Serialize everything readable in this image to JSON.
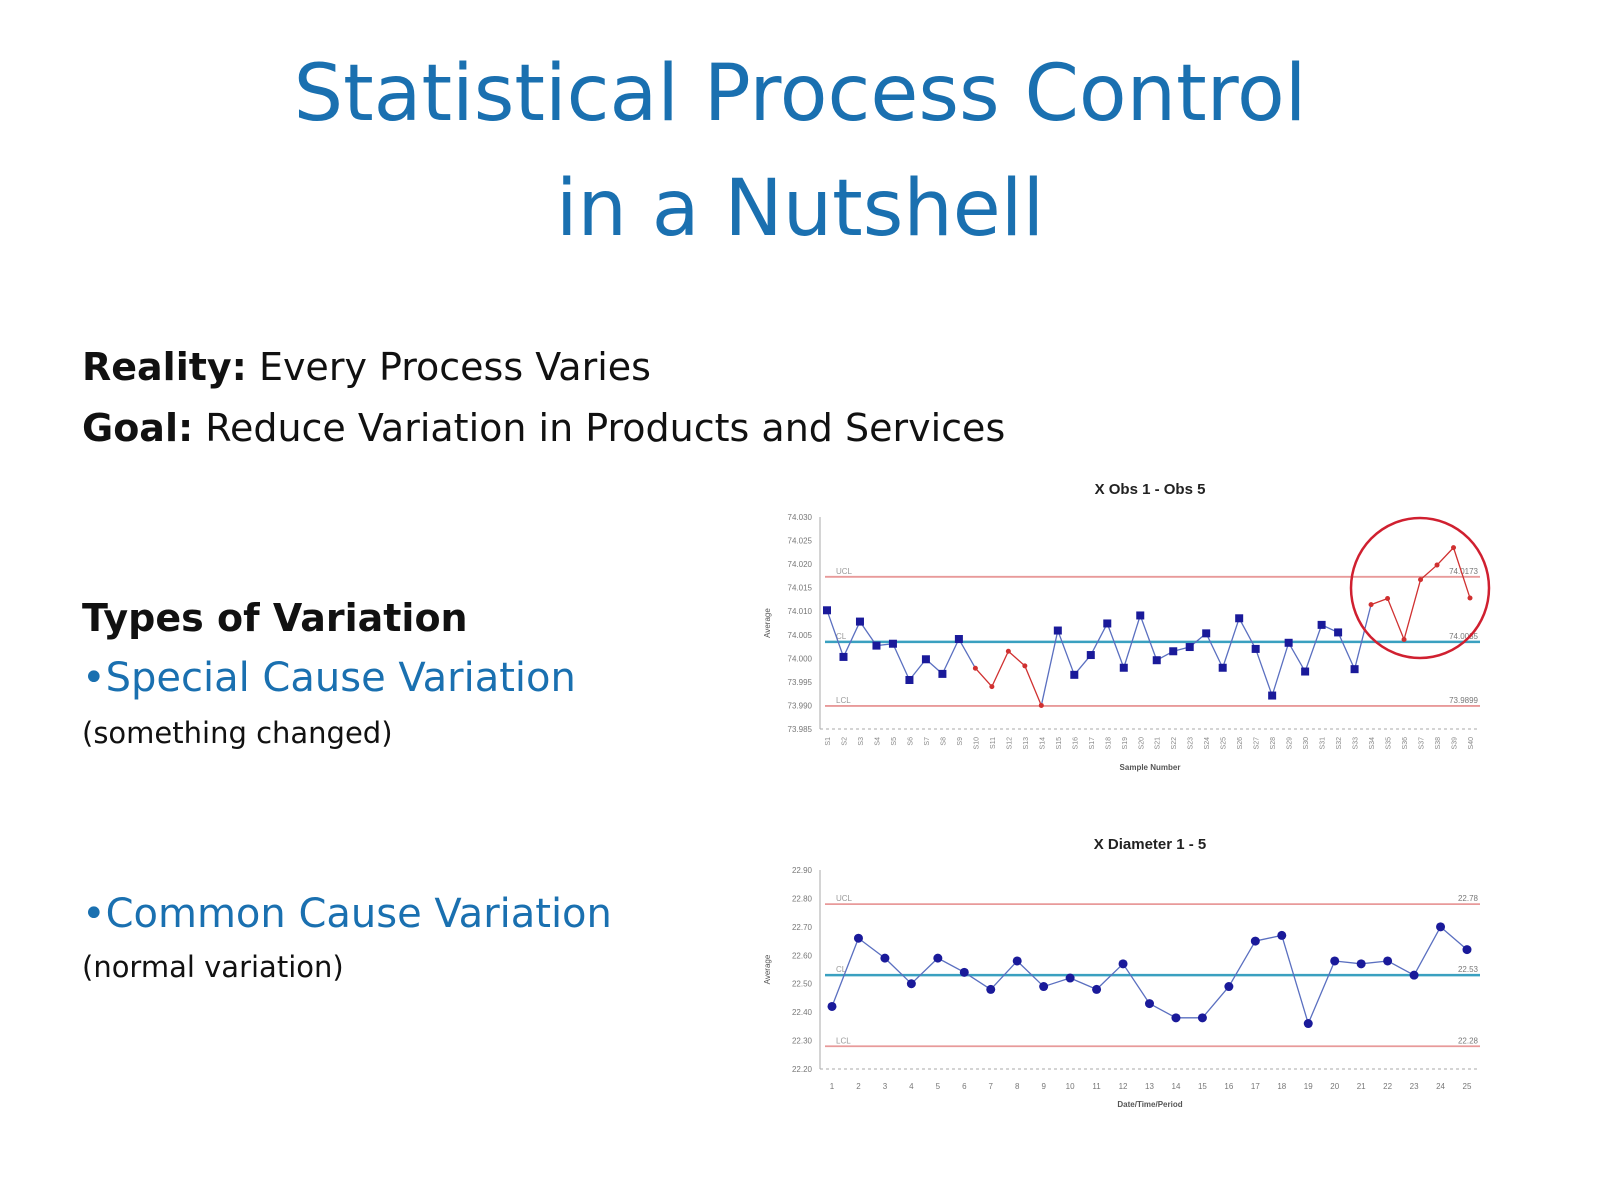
{
  "slide": {
    "title_line1": "Statistical Process Control",
    "title_line2": "in a Nutshell",
    "reality_label": "Reality:",
    "reality_text": " Every Process Varies",
    "goal_label": "Goal:",
    "goal_text": " Reduce Variation in Products and Services",
    "types_heading": "Types of Variation",
    "special_bullet": "•Special Cause Variation",
    "special_note": "(something changed)",
    "common_bullet": "•Common Cause Variation",
    "common_note": "(normal variation)",
    "colors": {
      "title": "#1a70b0",
      "control_limits": "#e89a9a",
      "center_line": "#3aa0c0",
      "in_control": "#1a1a9a",
      "out_of_control": "#d03030",
      "highlight_circle": "#d02030"
    }
  },
  "chart_data": [
    {
      "type": "line",
      "title": "X Obs 1 - Obs 5",
      "xlabel": "Sample Number",
      "ylabel": "Average",
      "ylim": [
        73.985,
        74.03
      ],
      "yticks": [
        "73.985",
        "73.990",
        "73.995",
        "74.000",
        "74.005",
        "74.010",
        "74.015",
        "74.020",
        "74.025",
        "74.030"
      ],
      "categories": [
        "S1",
        "S2",
        "S3",
        "S4",
        "S5",
        "S6",
        "S7",
        "S8",
        "S9",
        "S10",
        "S11",
        "S12",
        "S13",
        "S14",
        "S15",
        "S16",
        "S17",
        "S18",
        "S19",
        "S20",
        "S21",
        "S22",
        "S23",
        "S24",
        "S25",
        "S26",
        "S27",
        "S28",
        "S29",
        "S30",
        "S31",
        "S32",
        "S33",
        "S34",
        "S35",
        "S36",
        "S37",
        "S38",
        "S39",
        "S40"
      ],
      "values": [
        74.0102,
        74.0003,
        74.0078,
        74.0027,
        74.0031,
        73.9954,
        73.9998,
        73.9967,
        74.0041,
        73.9979,
        73.994,
        74.0015,
        73.9984,
        73.99,
        74.0059,
        73.9965,
        74.0007,
        74.0074,
        73.998,
        74.0091,
        73.9996,
        74.0015,
        74.0024,
        74.0053,
        73.998,
        74.0085,
        74.002,
        73.9921,
        74.0033,
        73.9972,
        74.0071,
        74.0055,
        73.9977,
        74.0114,
        74.0127,
        74.004,
        74.0167,
        74.0198,
        74.0235,
        74.0128
      ],
      "out_of_control_points": [
        10,
        11,
        12,
        13,
        14,
        34,
        35,
        36,
        37,
        38,
        39,
        40
      ],
      "control_limits": {
        "UCL": 74.0173,
        "CL": 74.0035,
        "LCL": 73.9899
      },
      "limit_labels": {
        "UCL": "UCL",
        "CL": "CL",
        "LCL": "LCL",
        "UCL_value": "74.0173",
        "CL_value": "74.0035",
        "LCL_value": "73.9899"
      },
      "annotation": "red circle around samples 34-40",
      "grid": false
    },
    {
      "type": "line",
      "title": "X Diameter 1 - 5",
      "xlabel": "Date/Time/Period",
      "ylabel": "Average",
      "ylim": [
        22.2,
        22.9
      ],
      "yticks": [
        "22.20",
        "22.30",
        "22.40",
        "22.50",
        "22.60",
        "22.70",
        "22.80",
        "22.90"
      ],
      "categories": [
        "1",
        "2",
        "3",
        "4",
        "5",
        "6",
        "7",
        "8",
        "9",
        "10",
        "11",
        "12",
        "13",
        "14",
        "15",
        "16",
        "17",
        "18",
        "19",
        "20",
        "21",
        "22",
        "23",
        "24",
        "25"
      ],
      "values": [
        22.42,
        22.66,
        22.59,
        22.5,
        22.59,
        22.54,
        22.48,
        22.58,
        22.49,
        22.52,
        22.48,
        22.57,
        22.43,
        22.38,
        22.38,
        22.49,
        22.65,
        22.67,
        22.36,
        22.58,
        22.57,
        22.58,
        22.53,
        22.7,
        22.62
      ],
      "control_limits": {
        "UCL": 22.78,
        "CL": 22.53,
        "LCL": 22.28
      },
      "limit_labels": {
        "UCL": "UCL",
        "CL": "CL",
        "LCL": "LCL",
        "UCL_value": "22.78",
        "CL_value": "22.53",
        "LCL_value": "22.28"
      },
      "grid": false
    }
  ]
}
